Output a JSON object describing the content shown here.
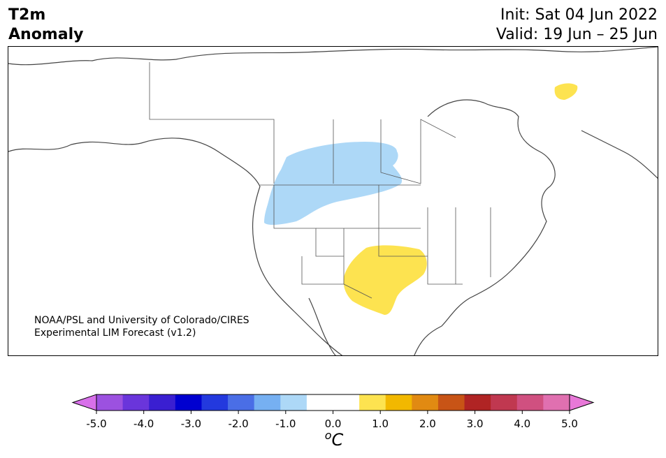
{
  "title": {
    "left_line1": "T2m",
    "left_line2": "Anomaly",
    "right_line1": "Init: Sat 04 Jun 2022",
    "right_line2": "Valid: 19 Jun – 25 Jun"
  },
  "map": {
    "credit_line1": "NOAA/PSL and University of Colorado/CIRES",
    "credit_line2": "Experimental LIM Forecast (v1.2)",
    "anomaly_regions": [
      {
        "label": "northern-plains-cool-anomaly",
        "color": "#add8f7",
        "range": "-1.0 to -0.5"
      },
      {
        "label": "southern-plains-warm-anomaly",
        "color": "#fde350",
        "range": "0.5 to 1.0"
      },
      {
        "label": "hudson-strait-warm-anomaly",
        "color": "#fde350",
        "range": "0.5 to 1.0"
      }
    ]
  },
  "colorbar": {
    "unit": "°C",
    "unit_display": "oC",
    "levels": [
      "-5.0",
      "-4.5",
      "-4.0",
      "-3.5",
      "-3.0",
      "-2.5",
      "-2.0",
      "-1.5",
      "-1.0",
      "-0.5",
      "0.0",
      "0.5",
      "1.0",
      "1.5",
      "2.0",
      "2.5",
      "3.0",
      "3.5",
      "4.0",
      "4.5",
      "5.0"
    ],
    "tick_labels": [
      "-5.0",
      "-4.0",
      "-3.0",
      "-2.0",
      "-1.0",
      "0.0",
      "1.0",
      "2.0",
      "3.0",
      "4.0",
      "5.0"
    ],
    "colors": [
      "#9c51e0",
      "#6a35db",
      "#3a1fd1",
      "#0000d0",
      "#2339de",
      "#4a6ee6",
      "#76b0f2",
      "#add8f7",
      "#ffffff",
      "#ffffff",
      "#fde350",
      "#f2b800",
      "#e18a12",
      "#c85416",
      "#b02424",
      "#c03850",
      "#d05080",
      "#e070b0"
    ],
    "extend_low_color": "#d870ea",
    "extend_high_color": "#e878d8"
  }
}
